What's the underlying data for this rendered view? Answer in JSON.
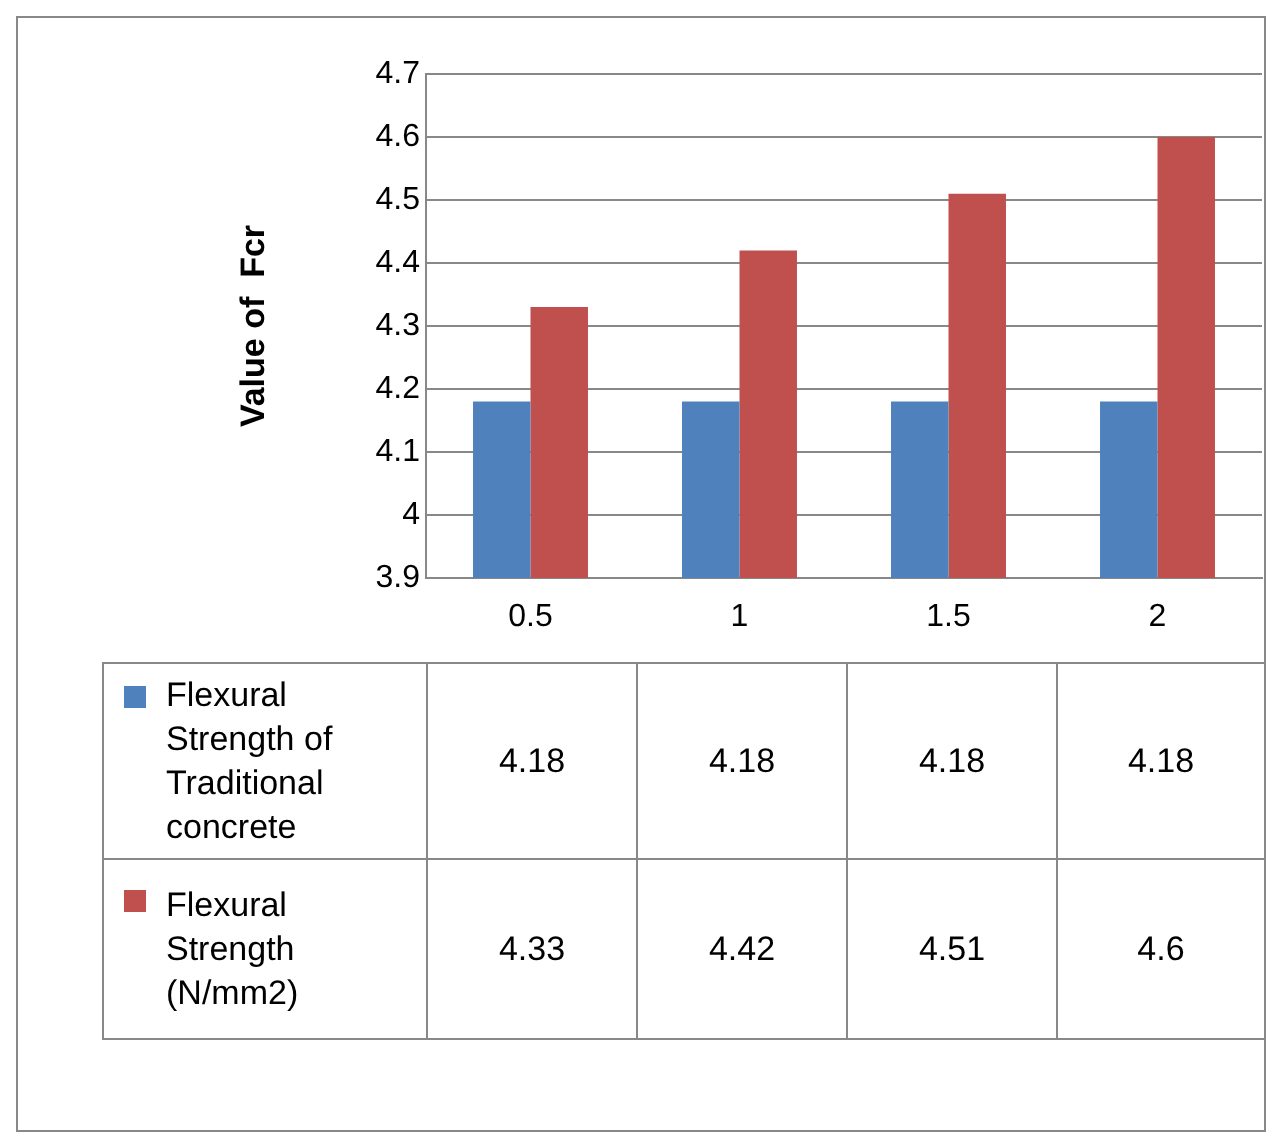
{
  "chart_data": {
    "type": "bar",
    "ylabel": "Value of  Fcr",
    "categories": [
      "0.5",
      "1",
      "1.5",
      "2"
    ],
    "series": [
      {
        "name": "Flexural Strength of Traditional concrete",
        "color": "#4f81bd",
        "values": [
          4.18,
          4.18,
          4.18,
          4.18
        ]
      },
      {
        "name": "Flexural Strength (N/mm2)",
        "color": "#c0504d",
        "values": [
          4.33,
          4.42,
          4.51,
          4.6
        ]
      }
    ],
    "ylim": [
      3.9,
      4.7
    ],
    "yticks": [
      3.9,
      4,
      4.1,
      4.2,
      4.3,
      4.4,
      4.5,
      4.6,
      4.7
    ],
    "grid": "y",
    "legend": "bottom left",
    "data_labels": true
  }
}
